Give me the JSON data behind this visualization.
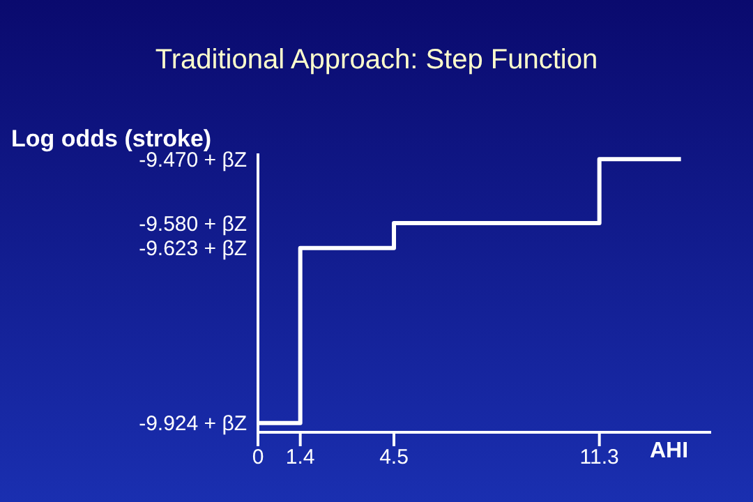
{
  "chart_data": {
    "type": "step",
    "title": "Traditional Approach: Step Function",
    "xlabel": "AHI",
    "ylabel": "Log odds (stroke)",
    "x": [
      0,
      1.4,
      4.5,
      11.3,
      14
    ],
    "series": [
      {
        "color": "#ffffff",
        "values": [
          -9.924,
          -9.623,
          -9.58,
          -9.47,
          -9.47
        ]
      }
    ],
    "xlim": [
      0,
      15
    ],
    "xticks": [
      0,
      1.4,
      4.5,
      11.3
    ],
    "ylim": [
      -9.94,
      -9.46
    ],
    "yticks": [
      {
        "value": -9.924,
        "label": "-9.924 + βZ"
      },
      {
        "value": -9.623,
        "label": "-9.623 + βZ"
      },
      {
        "value": -9.58,
        "label": "-9.580 + βZ"
      },
      {
        "value": -9.47,
        "label": "-9.470 + βZ"
      }
    ],
    "grid": false,
    "legend": false,
    "marker": "none",
    "line_style": "solid"
  }
}
